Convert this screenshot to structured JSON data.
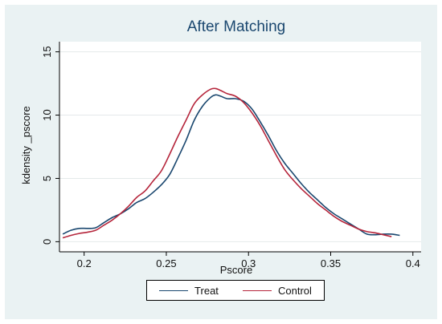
{
  "chart_data": {
    "type": "line",
    "title": "After Matching",
    "xlabel": "Pscore",
    "ylabel": "kdensity _pscore",
    "xlim": [
      0.185,
      0.405
    ],
    "ylim": [
      -0.8,
      15.8
    ],
    "xticks": [
      0.2,
      0.25,
      0.3,
      0.35,
      0.4
    ],
    "xtick_labels": [
      "0.2",
      "0.25",
      "0.3",
      "0.35",
      "0.4"
    ],
    "yticks": [
      0,
      5,
      10,
      15
    ],
    "ytick_labels": [
      "0",
      "5",
      "10",
      "15"
    ],
    "grid": true,
    "legend_position": "bottom",
    "series": [
      {
        "name": "Treat",
        "color": "#1a476f",
        "x": [
          0.187,
          0.192,
          0.197,
          0.202,
          0.207,
          0.212,
          0.217,
          0.222,
          0.227,
          0.232,
          0.237,
          0.242,
          0.247,
          0.252,
          0.257,
          0.262,
          0.267,
          0.272,
          0.277,
          0.28,
          0.283,
          0.287,
          0.292,
          0.297,
          0.302,
          0.307,
          0.312,
          0.317,
          0.322,
          0.327,
          0.332,
          0.337,
          0.342,
          0.347,
          0.352,
          0.357,
          0.362,
          0.367,
          0.372,
          0.377,
          0.382,
          0.387,
          0.392
        ],
        "y": [
          0.6,
          0.9,
          1.05,
          1.05,
          1.1,
          1.5,
          1.9,
          2.2,
          2.6,
          3.1,
          3.4,
          3.9,
          4.5,
          5.3,
          6.6,
          8.0,
          9.6,
          10.7,
          11.4,
          11.6,
          11.5,
          11.3,
          11.3,
          11.1,
          10.5,
          9.5,
          8.4,
          7.2,
          6.2,
          5.4,
          4.6,
          3.9,
          3.3,
          2.7,
          2.2,
          1.8,
          1.4,
          1.0,
          0.6,
          0.55,
          0.6,
          0.6,
          0.5
        ]
      },
      {
        "name": "Control",
        "color": "#b5253b",
        "x": [
          0.187,
          0.192,
          0.197,
          0.202,
          0.207,
          0.212,
          0.217,
          0.222,
          0.227,
          0.232,
          0.237,
          0.242,
          0.247,
          0.252,
          0.257,
          0.262,
          0.267,
          0.272,
          0.277,
          0.28,
          0.283,
          0.287,
          0.292,
          0.297,
          0.302,
          0.307,
          0.312,
          0.317,
          0.322,
          0.327,
          0.332,
          0.337,
          0.342,
          0.347,
          0.352,
          0.357,
          0.362,
          0.367,
          0.372,
          0.377,
          0.382,
          0.387
        ],
        "y": [
          0.3,
          0.5,
          0.65,
          0.75,
          0.9,
          1.3,
          1.7,
          2.2,
          2.8,
          3.5,
          4.0,
          4.8,
          5.6,
          6.9,
          8.3,
          9.6,
          10.9,
          11.6,
          12.05,
          12.1,
          11.95,
          11.7,
          11.5,
          11.0,
          10.2,
          9.2,
          8.0,
          6.8,
          5.7,
          4.9,
          4.2,
          3.6,
          3.0,
          2.5,
          2.0,
          1.6,
          1.3,
          1.0,
          0.8,
          0.7,
          0.55,
          0.4
        ]
      }
    ]
  }
}
